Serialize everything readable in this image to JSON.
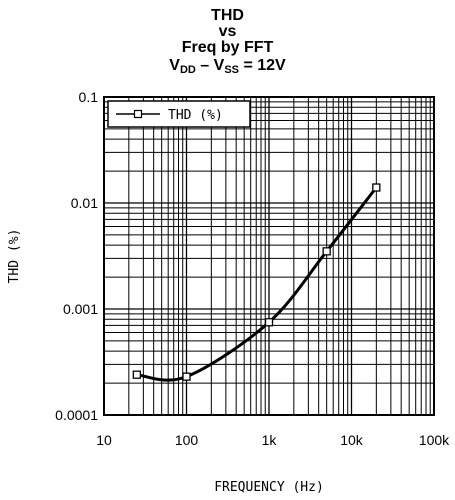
{
  "chart_data": {
    "type": "line",
    "title_lines": [
      "THD",
      "vs",
      "Freq by FFT"
    ],
    "condition": {
      "v1": "V",
      "s1": "DD",
      "mid": " – V",
      "s2": "SS",
      "tail": " = 12V"
    },
    "xlabel": "FREQUENCY (Hz)",
    "ylabel": "THD (%)",
    "x_scale": "log",
    "y_scale": "log",
    "xlim": [
      10,
      100000
    ],
    "ylim": [
      0.0001,
      0.1
    ],
    "x_tick_values": [
      10,
      100,
      1000,
      10000,
      100000
    ],
    "x_tick_labels": [
      "10",
      "100",
      "1k",
      "10k",
      "100k"
    ],
    "y_tick_values": [
      0.0001,
      0.001,
      0.01,
      0.1
    ],
    "y_tick_labels": [
      "0.0001",
      "0.001",
      "0.01",
      "0.1"
    ],
    "grid": true,
    "legend_position": "top-left",
    "series": [
      {
        "name": "THD (%)",
        "color": "#000000",
        "marker": "open-square",
        "x": [
          25,
          100,
          1000,
          5000,
          20000
        ],
        "y": [
          0.00024,
          0.00023,
          0.00075,
          0.0035,
          0.014
        ]
      }
    ]
  }
}
